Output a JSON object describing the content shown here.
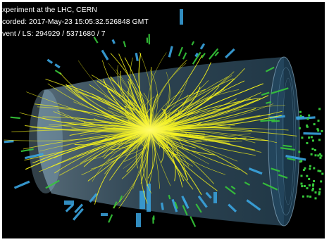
{
  "event_display": {
    "caption_lines": [
      "xperiment at the LHC, CERN",
      "corded: 2017-May-23 15:05:32.526848 GMT",
      "vent / LS: 294929 / 5371680 / 7"
    ],
    "colors": {
      "background": "#000000",
      "detector_barrel": "#6f9fbf",
      "charged_tracks": "#f4f21a",
      "calorimeter_towers": "#3aa5e0",
      "muon_hits": "#36c83a"
    }
  }
}
